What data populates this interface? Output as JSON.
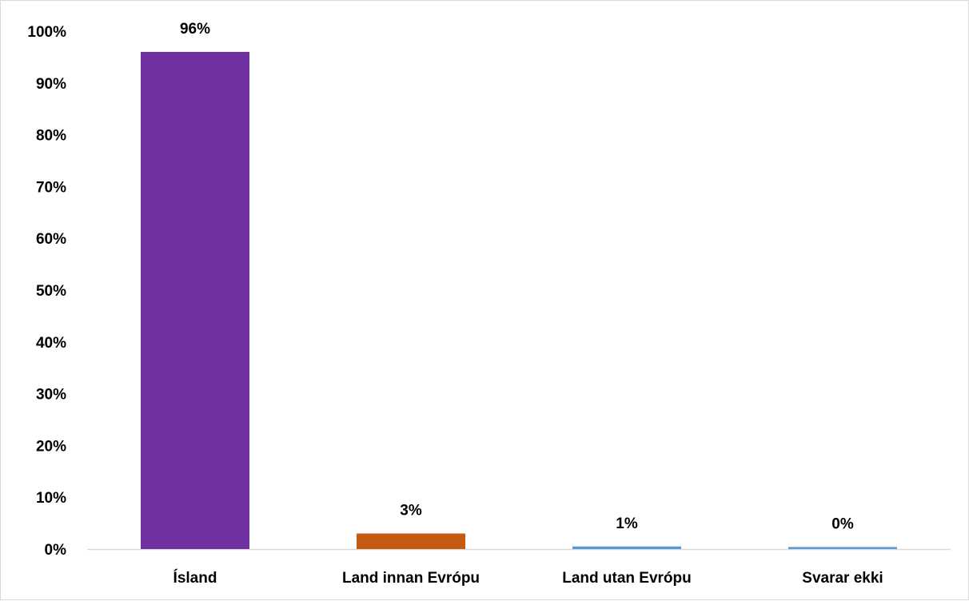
{
  "chart_data": {
    "type": "bar",
    "categories": [
      "Ísland",
      "Land innan Evrópu",
      "Land utan Evrópu",
      "Svarar ekki"
    ],
    "values": [
      96,
      3,
      0.5,
      0.4
    ],
    "value_labels": [
      "96%",
      "3%",
      "1%",
      "0%"
    ],
    "bar_colors": [
      "#7030a0",
      "#c55a11",
      "#5b9bd5",
      "#5b9bd5"
    ],
    "title": "",
    "xlabel": "",
    "ylabel": "",
    "ylim": [
      0,
      100
    ],
    "y_ticks": [
      0,
      10,
      20,
      30,
      40,
      50,
      60,
      70,
      80,
      90,
      100
    ],
    "y_tick_labels": [
      "0%",
      "10%",
      "20%",
      "30%",
      "40%",
      "50%",
      "60%",
      "70%",
      "80%",
      "90%",
      "100%"
    ],
    "grid": false,
    "legend": "none",
    "axis_color": "#d9d9d9"
  }
}
